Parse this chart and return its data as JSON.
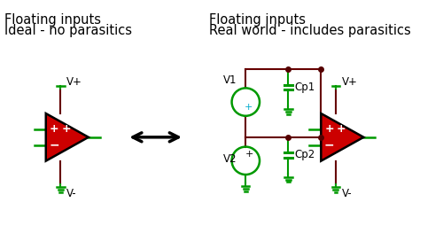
{
  "title_left_line1": "Floating inputs",
  "title_left_line2": "Ideal - no parasitics",
  "title_right_line1": "Floating inputs",
  "title_right_line2": "Real world - includes parasitics",
  "bg_color": "#ffffff",
  "op_amp_fill": "#cc0000",
  "op_amp_edge": "#000000",
  "wire_dark": "#660000",
  "wire_green": "#009900",
  "text_color": "#000000",
  "node_color": "#550000",
  "cyan_color": "#00aacc",
  "arrow_color": "#000000",
  "title_fontsize": 10.5,
  "label_fontsize": 8.5
}
